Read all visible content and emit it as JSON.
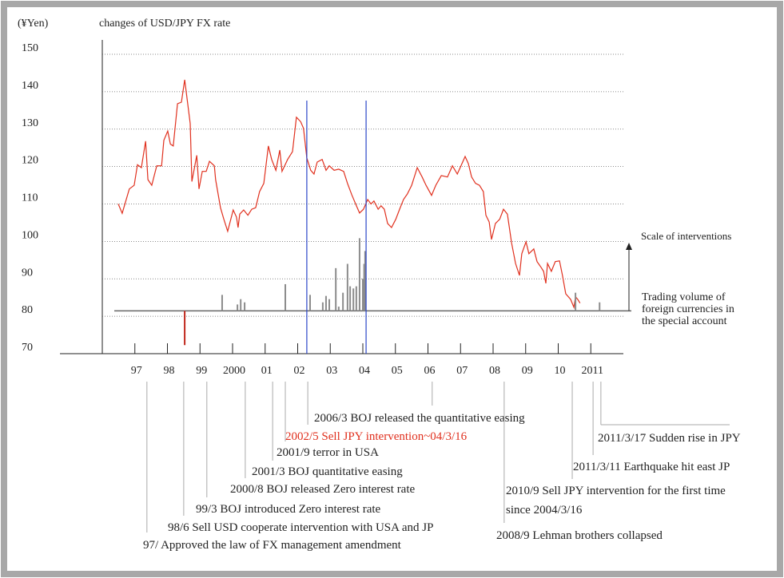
{
  "chart_data": {
    "type": "line",
    "title": "changes of USD/JPY FX rate",
    "y_label": "(¥Yen)",
    "ylim": [
      70,
      150
    ],
    "yticks": [
      70,
      80,
      90,
      100,
      110,
      120,
      130,
      140,
      150
    ],
    "xlim": [
      1996,
      2012
    ],
    "xticks": [
      {
        "value": 1997,
        "label": "97"
      },
      {
        "value": 1998,
        "label": "98"
      },
      {
        "value": 1999,
        "label": "99"
      },
      2000,
      {
        "value": 2001,
        "label": "01"
      },
      {
        "value": 2002,
        "label": "02"
      },
      {
        "value": 2003,
        "label": "03"
      },
      {
        "value": 2004,
        "label": "04"
      },
      {
        "value": 2005,
        "label": "05"
      },
      {
        "value": 2006,
        "label": "06"
      },
      {
        "value": 2007,
        "label": "07"
      },
      {
        "value": 2008,
        "label": "08"
      },
      {
        "value": 2009,
        "label": "09"
      },
      {
        "value": 2010,
        "label": "10"
      },
      2011
    ],
    "grid": true,
    "series": [
      {
        "color": "#e0301e",
        "x": [
          1996.49,
          1996.61,
          1996.83,
          1996.98,
          1997.08,
          1997.2,
          1997.33,
          1997.4,
          1997.52,
          1997.67,
          1997.82,
          1997.89,
          1998.01,
          1998.09,
          1998.18,
          1998.26,
          1998.31,
          1998.43,
          1998.53,
          1998.7,
          1998.75,
          1998.9,
          1998.97,
          1999.07,
          1999.19,
          1999.29,
          1999.44,
          1999.48,
          1999.63,
          1999.73,
          1999.85,
          2000.02,
          2000.12,
          2000.17,
          2000.22,
          2000.34,
          2000.47,
          2000.59,
          2000.71,
          2000.83,
          2000.96,
          2001.1,
          2001.2,
          2001.33,
          2001.45,
          2001.52,
          2001.69,
          2001.84,
          2001.96,
          2002.09,
          2002.18,
          2002.28,
          2002.4,
          2002.5,
          2002.6,
          2002.75,
          2002.87,
          2002.97,
          2003.12,
          2003.26,
          2003.41,
          2003.53,
          2003.66,
          2003.78,
          2003.9,
          2004.02,
          2004.15,
          2004.25,
          2004.34,
          2004.47,
          2004.56,
          2004.66,
          2004.76,
          2004.88,
          2005.01,
          2005.13,
          2005.25,
          2005.37,
          2005.5,
          2005.67,
          2005.82,
          2005.94,
          2006.11,
          2006.24,
          2006.41,
          2006.6,
          2006.75,
          2006.9,
          2006.99,
          2007.14,
          2007.24,
          2007.34,
          2007.46,
          2007.58,
          2007.7,
          2007.78,
          2007.88,
          2007.95,
          2008.07,
          2008.2,
          2008.32,
          2008.44,
          2008.57,
          2008.69,
          2008.81,
          2008.88,
          2009.01,
          2009.1,
          2009.25,
          2009.35,
          2009.47,
          2009.55,
          2009.62,
          2009.67,
          2009.79,
          2009.91,
          2010.04,
          2010.13,
          2010.23,
          2010.38,
          2010.48,
          2010.53,
          2010.6,
          2010.67
        ],
        "values": [
          110,
          107.5,
          114,
          115,
          120.5,
          119.7,
          126.8,
          116.5,
          115,
          120.2,
          120.2,
          127,
          129.5,
          126,
          125.5,
          132.5,
          136.8,
          137.2,
          143.2,
          131.5,
          116,
          123,
          114,
          118.7,
          118.7,
          121.4,
          120.2,
          116.5,
          109,
          106,
          102.7,
          108.4,
          106.5,
          103.7,
          107.3,
          108.4,
          107,
          108.6,
          109,
          113.3,
          115.5,
          125.5,
          121.9,
          119,
          124.4,
          118.7,
          121.9,
          124,
          133.2,
          132,
          130.2,
          122.3,
          119,
          118,
          121.2,
          121.9,
          119,
          120.2,
          119,
          119.3,
          118.7,
          115.5,
          112.5,
          110,
          107.6,
          108.6,
          111.2,
          110,
          110.8,
          108.6,
          109.5,
          108.6,
          104.8,
          103.7,
          105.9,
          108.6,
          111.2,
          112.7,
          115,
          119.7,
          117.2,
          115,
          112.3,
          115,
          117.6,
          117.2,
          120.2,
          118,
          119.7,
          122.7,
          120.8,
          117.2,
          115.5,
          115,
          113.3,
          107,
          105.2,
          100.5,
          104.8,
          105.9,
          108.6,
          107.3,
          99.5,
          94.1,
          90.9,
          96.7,
          99.9,
          96.7,
          98,
          94.6,
          93.1,
          92,
          88.8,
          94.1,
          92,
          94.6,
          94.8,
          90.9,
          86,
          84.5,
          82.4,
          85.2,
          84.5,
          83.5
        ]
      },
      {
        "type": "bar",
        "axis": "y2",
        "color": "#8c8c8c",
        "x": [
          1999.68,
          2000.15,
          2000.25,
          2000.37,
          2001.62,
          2002.38,
          2002.77,
          2002.87,
          2002.97,
          2003.17,
          2003.26,
          2003.39,
          2003.53,
          2003.61,
          2003.71,
          2003.8,
          2003.9,
          2004.0,
          2004.04,
          2004.07,
          2010.53,
          2011.27
        ],
        "values": [
          0.75,
          0.3,
          0.55,
          0.4,
          1.25,
          0.75,
          0.4,
          0.7,
          0.55,
          2.0,
          0.2,
          0.85,
          2.2,
          1.15,
          1.05,
          1.15,
          3.4,
          1.5,
          2.2,
          2.8,
          0.85,
          0.4
        ]
      },
      {
        "type": "bar",
        "axis": "y2",
        "color": "#c0281c",
        "x": [
          1998.53
        ],
        "values": [
          -1.6
        ]
      }
    ],
    "y2lim": [
      -2,
      12
    ],
    "vlines": {
      "color": "#2a46c8",
      "x": [
        2002.28,
        2004.1
      ]
    },
    "scale_label": "Scale of interventions",
    "volume_label": [
      "Trading volume of",
      "foreign currencies in",
      "the special account"
    ],
    "annotations": [
      {
        "text": "2006/3 BOJ released the quantitative easing",
        "x": 2006.13
      },
      {
        "text": "2002/5 Sell JPY intervention~04/3/16",
        "x": 2002.31,
        "color": "#e0301e"
      },
      {
        "text": "2001/9 terror in USA",
        "x": 2001.62
      },
      {
        "text": "2001/3 BOJ quantitative easing",
        "x": 2001.23
      },
      {
        "text": "2000/8 BOJ released Zero interest rate",
        "x": 2000.39
      },
      {
        "text": "99/3 BOJ introduced Zero interest rate",
        "x": 1999.21
      },
      {
        "text": "98/6 Sell USD cooperate intervention with USA and JP",
        "x": 1998.5
      },
      {
        "text": "97/ Approved the law of FX management amendment",
        "x": 1997.37
      },
      {
        "text": "2008/9 Lehman brothers collapsed",
        "x": 2008.34
      },
      {
        "text": "2010/9 Sell JPY intervention for the first time",
        "text2": "since 2004/3/16",
        "x": 2010.43
      },
      {
        "text": "2011/3/11 Earthquake hit east JP",
        "x": 2011.07
      },
      {
        "text": "2011/3/17 Sudden rise in JPY",
        "x": 2011.31
      }
    ]
  }
}
